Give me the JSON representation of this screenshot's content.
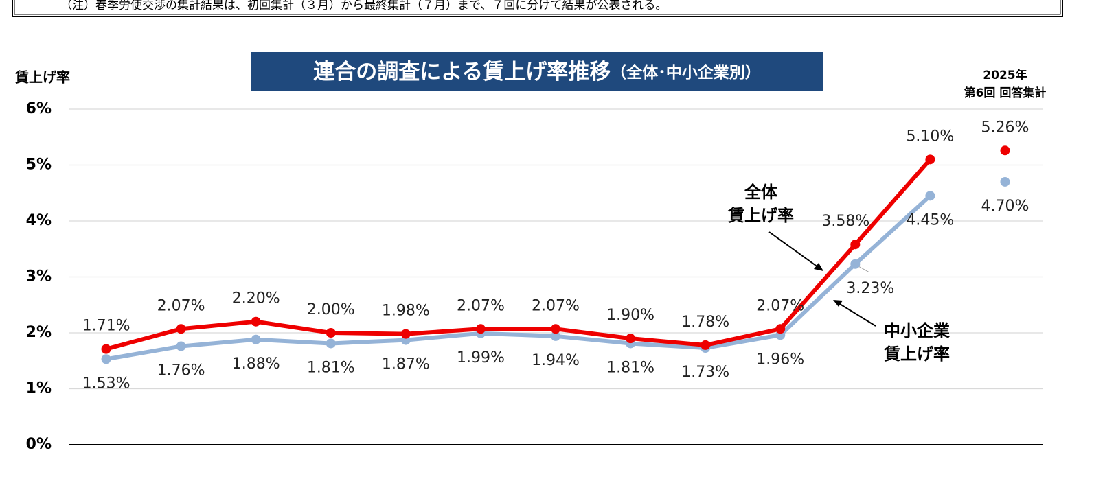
{
  "note": "（注）春季労使交渉の集計結果は、初回集計（３月）から最終集計（７月）まで、７回に分けて結果が公表される。",
  "chart_data": {
    "type": "line",
    "title": "連合の調査による賃上げ率推移",
    "subtitle": "（全体･中小企業別）",
    "y_axis_label": "賃上げ率",
    "categories": [
      null,
      null,
      null,
      null,
      null,
      null,
      null,
      null,
      null,
      null,
      null,
      null,
      "2025年\n第6回 回答集計"
    ],
    "last_point_separate": true,
    "series": [
      {
        "name": "全体\n賃上げ率",
        "color": "#ee0000",
        "values": [
          1.71,
          2.07,
          2.2,
          2.0,
          1.98,
          2.07,
          2.07,
          1.9,
          1.78,
          2.07,
          3.58,
          5.1,
          5.26
        ],
        "value_labels": [
          "1.71%",
          "2.07%",
          "2.20%",
          "2.00%",
          "1.98%",
          "2.07%",
          "2.07%",
          "1.90%",
          "1.78%",
          "2.07%",
          "3.58%",
          "5.10%",
          "5.26%"
        ]
      },
      {
        "name": "中小企業\n賃上げ率",
        "color": "#95b3d7",
        "values": [
          1.53,
          1.76,
          1.88,
          1.81,
          1.87,
          1.99,
          1.94,
          1.81,
          1.73,
          1.96,
          3.23,
          4.45,
          4.7
        ],
        "value_labels": [
          "1.53%",
          "1.76%",
          "1.88%",
          "1.81%",
          "1.87%",
          "1.99%",
          "1.94%",
          "1.81%",
          "1.73%",
          "1.96%",
          "3.23%",
          "4.45%",
          "4.70%"
        ]
      }
    ],
    "ylim": [
      0,
      6
    ],
    "yticks": [
      {
        "value": 0,
        "label": "0%"
      },
      {
        "value": 1,
        "label": "1%"
      },
      {
        "value": 2,
        "label": "2%"
      },
      {
        "value": 3,
        "label": "3%"
      },
      {
        "value": 4,
        "label": "4%"
      },
      {
        "value": 5,
        "label": "5%"
      },
      {
        "value": 6,
        "label": "6%"
      }
    ],
    "grid": true
  }
}
